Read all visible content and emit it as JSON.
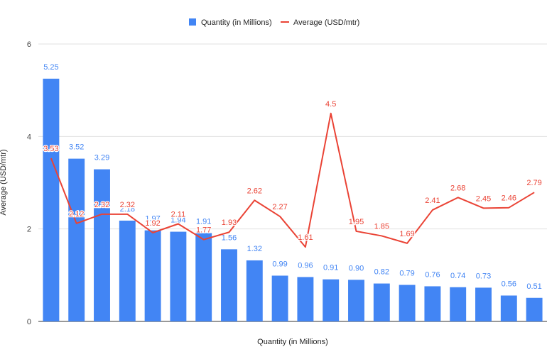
{
  "chart_data": {
    "type": "bar",
    "xlabel": "Quantity (in Millions)",
    "ylabel": "Average (USD/mtr)",
    "ylim": [
      0,
      6
    ],
    "yticks": [
      0,
      2,
      4,
      6
    ],
    "grid": true,
    "legend_position": "top-center",
    "series": [
      {
        "name": "Quantity (in Millions)",
        "type": "bar",
        "color": "#4285f4",
        "values": [
          5.25,
          3.52,
          3.29,
          2.18,
          1.97,
          1.94,
          1.91,
          1.56,
          1.32,
          0.99,
          0.96,
          0.91,
          0.9,
          0.82,
          0.79,
          0.76,
          0.74,
          0.73,
          0.56,
          0.51
        ],
        "labels": [
          "5.25",
          "3.52",
          "3.29",
          "2.18",
          "1.97",
          "1.94",
          "1.91",
          "1.56",
          "1.32",
          "0.99",
          "0.96",
          "0.91",
          "0.90",
          "0.82",
          "0.79",
          "0.76",
          "0.74",
          "0.73",
          "0.56",
          "0.51"
        ]
      },
      {
        "name": "Average (USD/mtr)",
        "type": "line",
        "color": "#ea4335",
        "values": [
          3.53,
          2.12,
          2.32,
          2.32,
          1.92,
          2.11,
          1.77,
          1.93,
          2.62,
          2.27,
          1.61,
          4.5,
          1.95,
          1.85,
          1.69,
          2.41,
          2.68,
          2.45,
          2.46,
          2.79
        ],
        "labels": [
          "3.53",
          "2.12",
          "2.32",
          "2.32",
          "1.92",
          "2.11",
          "1.77",
          "1.93",
          "2.62",
          "2.27",
          "1.61",
          "4.5",
          "1.95",
          "1.85",
          "1.69",
          "2.41",
          "2.68",
          "2.45",
          "2.46",
          "2.79"
        ]
      }
    ]
  }
}
